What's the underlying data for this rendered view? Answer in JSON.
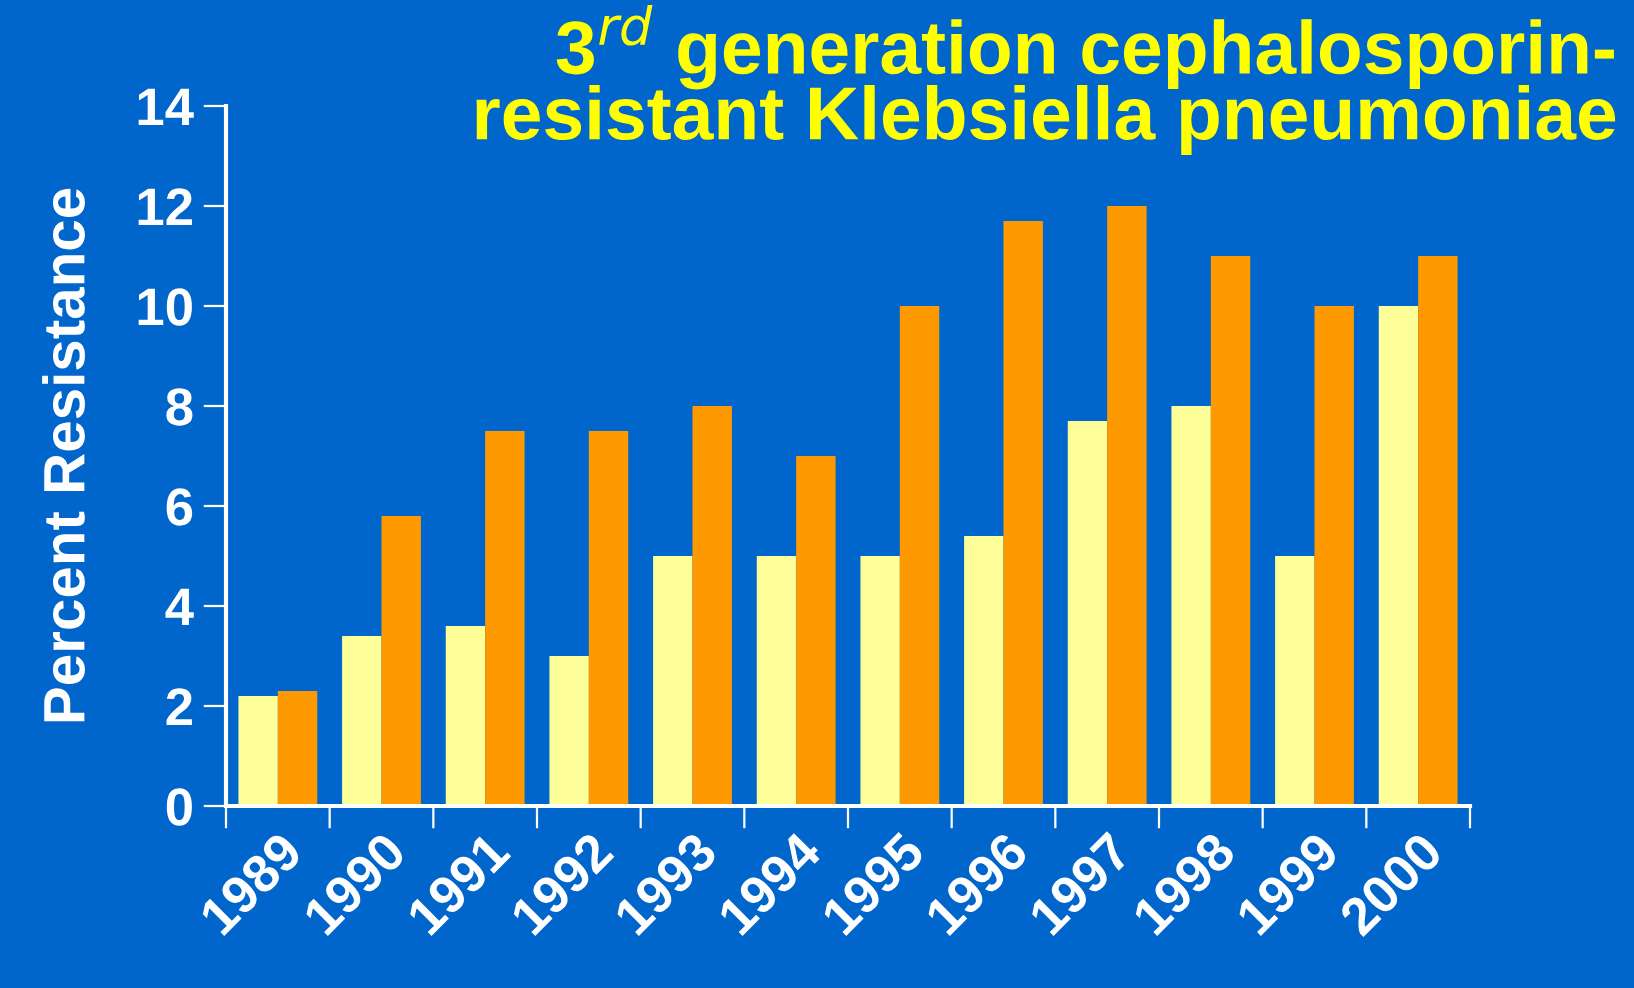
{
  "chart_data": {
    "type": "bar",
    "title": "3$^{rd}$ generation cephalosporin-\nresistant Klebsiella pneumoniae",
    "ylabel": "Percent Resistance",
    "categories": [
      "1989",
      "1990",
      "1991",
      "1992",
      "1993",
      "1994",
      "1995",
      "1996",
      "1997",
      "1998",
      "1999",
      "2000"
    ],
    "series": [
      {
        "color": "#ffff99",
        "values": [
          2.2,
          3.4,
          3.6,
          3.0,
          5.0,
          5.0,
          5.0,
          5.4,
          7.7,
          8.0,
          5.0,
          10.0
        ]
      },
      {
        "color": "#ff9900",
        "values": [
          2.3,
          5.8,
          7.5,
          7.5,
          8.0,
          7.0,
          10.0,
          11.7,
          12.0,
          11.0,
          10.0,
          11.0
        ]
      }
    ],
    "ylim": [
      0,
      14
    ],
    "yticks": [
      0,
      2,
      4,
      6,
      8,
      10,
      12,
      14
    ],
    "grid": false,
    "legend": false
  }
}
